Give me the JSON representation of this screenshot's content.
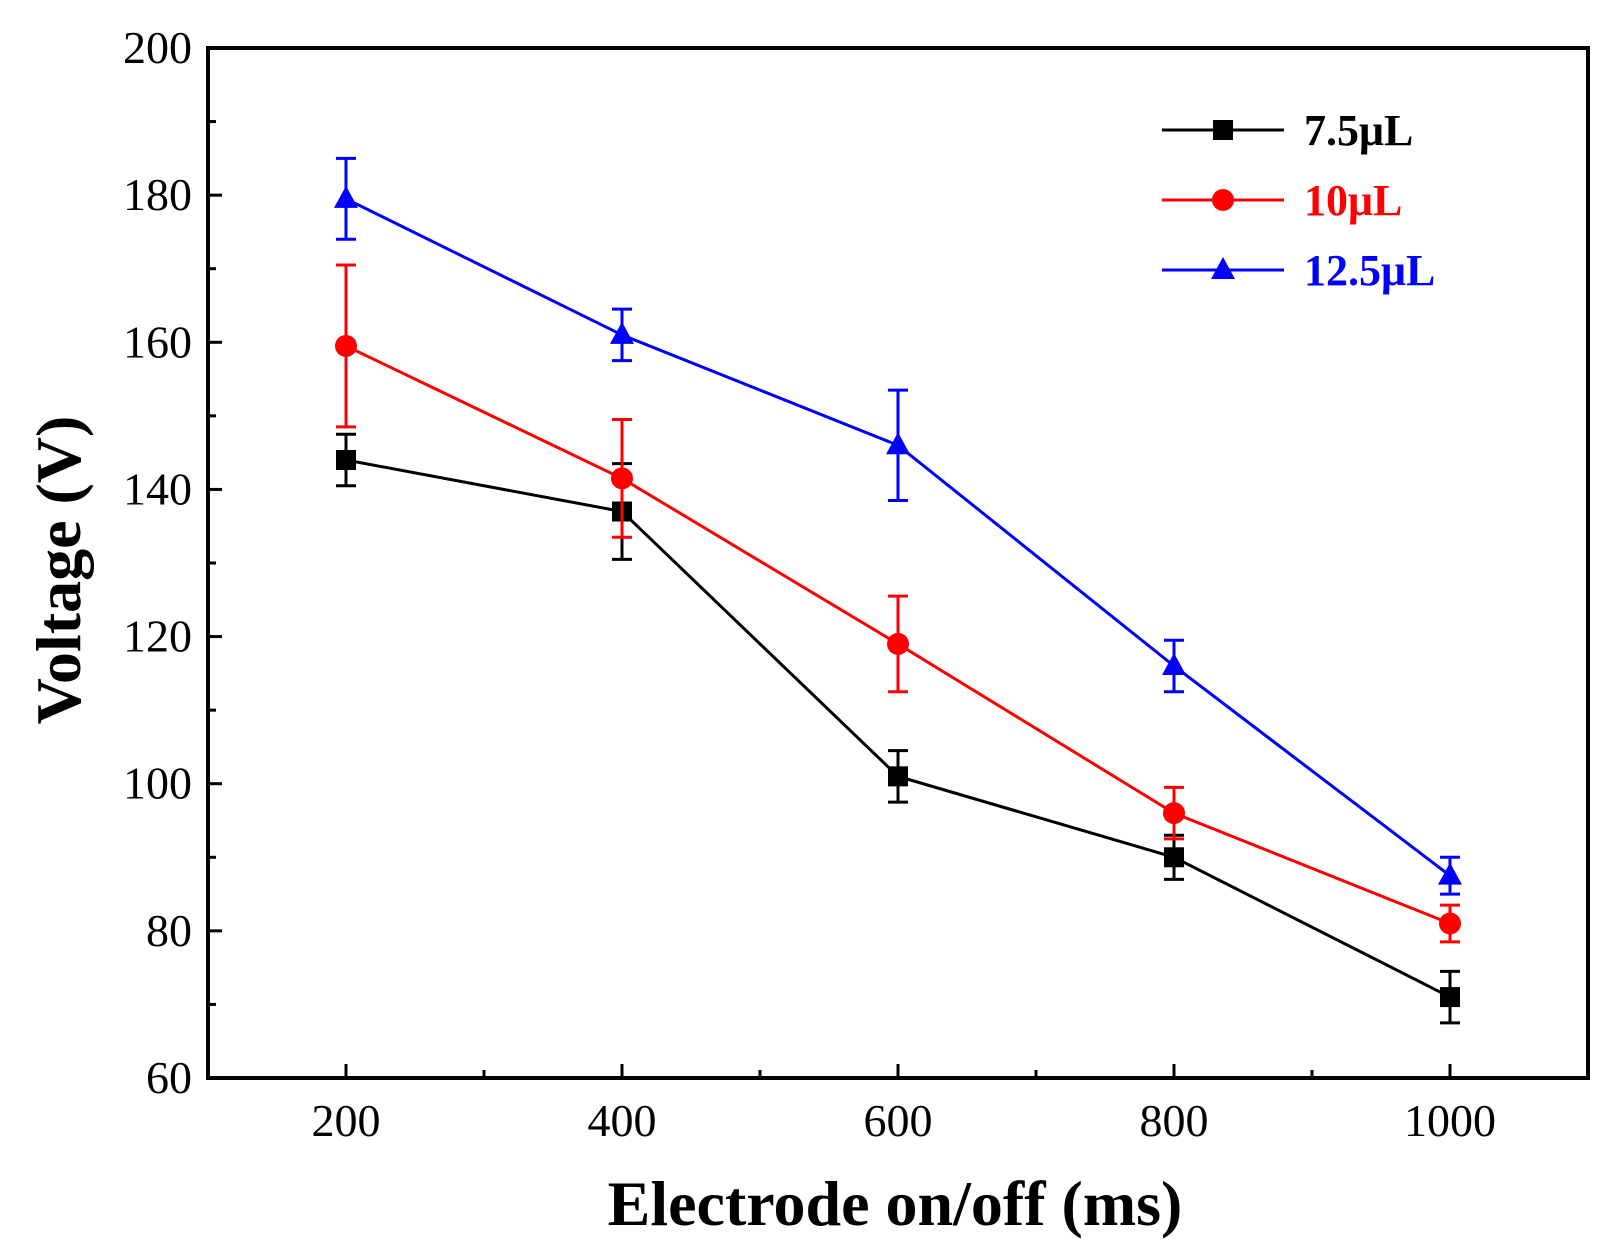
{
  "chart_data": {
    "type": "line",
    "xlabel": "Electrode on/off (ms)",
    "ylabel": "Voltage (V)",
    "x": [
      200,
      400,
      600,
      800,
      1000
    ],
    "xlim": [
      100,
      1100
    ],
    "ylim": [
      60,
      200
    ],
    "x_ticks": [
      200,
      400,
      600,
      800,
      1000
    ],
    "y_ticks": [
      60,
      80,
      100,
      120,
      140,
      160,
      180,
      200
    ],
    "legend_position": "top-right",
    "grid": false,
    "series": [
      {
        "name": "7.5μL",
        "color": "#000000",
        "marker": "square",
        "values": [
          144,
          137,
          101,
          90,
          71
        ],
        "errors": [
          3.5,
          6.5,
          3.5,
          3.0,
          3.5
        ]
      },
      {
        "name": "10μL",
        "color": "#ff0000",
        "marker": "circle",
        "values": [
          159.5,
          141.5,
          119,
          96,
          81
        ],
        "errors": [
          11,
          8,
          6.5,
          3.5,
          2.5
        ]
      },
      {
        "name": "12.5μL",
        "color": "#0000ff",
        "marker": "triangle",
        "values": [
          179.5,
          161,
          146,
          116,
          87.5
        ],
        "errors": [
          5.5,
          3.5,
          7.5,
          3.5,
          2.5
        ]
      }
    ]
  }
}
